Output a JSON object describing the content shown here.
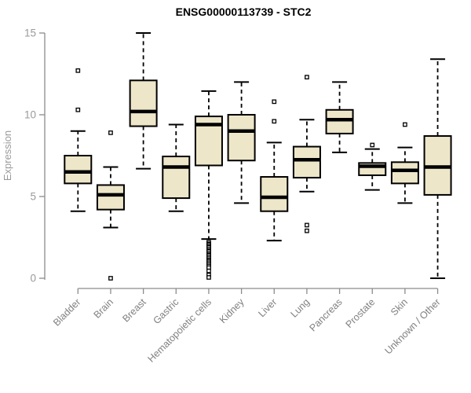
{
  "chart_data": {
    "type": "boxplot",
    "title": "ENSG00000113739 - STC2",
    "xlabel": "",
    "ylabel": "Expression",
    "ylim": [
      0,
      15
    ],
    "yticks": [
      0,
      5,
      10,
      15
    ],
    "grid": false,
    "legend": "none",
    "colors": {
      "box_fill": "#EDE6C9",
      "box_stroke": "#000000",
      "median": "#000000",
      "whisker": "#000000",
      "outlier_fill": "#FFFFFF",
      "axis": "#8C8C8C",
      "tick_label": "#9A9A9A",
      "category_label": "#808080",
      "title_color": "#000000",
      "background": "#FFFFFF"
    },
    "categories": [
      "Bladder",
      "Brain",
      "Breast",
      "Gastric",
      "Hematopoietic cells",
      "Kidney",
      "Liver",
      "Lung",
      "Pancreas",
      "Prostate",
      "Skin",
      "Unknown / Other"
    ],
    "series": [
      {
        "category": "Bladder",
        "whisker_low": 4.1,
        "q1": 5.8,
        "median": 6.5,
        "q3": 7.5,
        "whisker_high": 9.0,
        "outliers": [
          10.3,
          12.7
        ]
      },
      {
        "category": "Brain",
        "whisker_low": 3.1,
        "q1": 4.2,
        "median": 5.1,
        "q3": 5.7,
        "whisker_high": 6.8,
        "outliers": [
          0.0,
          8.9
        ]
      },
      {
        "category": "Breast",
        "whisker_low": 6.7,
        "q1": 9.3,
        "median": 10.2,
        "q3": 12.1,
        "whisker_high": 15.0,
        "outliers": []
      },
      {
        "category": "Gastric",
        "whisker_low": 4.1,
        "q1": 4.9,
        "median": 6.8,
        "q3": 7.45,
        "whisker_high": 9.4,
        "outliers": []
      },
      {
        "category": "Hematopoietic cells",
        "whisker_low": 2.4,
        "q1": 6.9,
        "median": 9.4,
        "q3": 9.9,
        "whisker_high": 11.45,
        "outliers": [
          2.2,
          2.1,
          2.05,
          1.95,
          1.9,
          1.8,
          1.7,
          1.65,
          1.55,
          1.45,
          1.4,
          1.3,
          1.2,
          1.1,
          1.05,
          0.95,
          0.85,
          0.75,
          0.65,
          0.45,
          0.2,
          0.05
        ]
      },
      {
        "category": "Kidney",
        "whisker_low": 4.6,
        "q1": 7.2,
        "median": 9.0,
        "q3": 10.0,
        "whisker_high": 12.0,
        "outliers": []
      },
      {
        "category": "Liver",
        "whisker_low": 2.3,
        "q1": 4.1,
        "median": 4.95,
        "q3": 6.2,
        "whisker_high": 8.3,
        "outliers": [
          9.6,
          10.8
        ]
      },
      {
        "category": "Lung",
        "whisker_low": 5.3,
        "q1": 6.15,
        "median": 7.25,
        "q3": 8.05,
        "whisker_high": 9.7,
        "outliers": [
          2.9,
          3.25,
          12.3
        ]
      },
      {
        "category": "Pancreas",
        "whisker_low": 7.7,
        "q1": 8.85,
        "median": 9.7,
        "q3": 10.3,
        "whisker_high": 12.0,
        "outliers": []
      },
      {
        "category": "Prostate",
        "whisker_low": 5.4,
        "q1": 6.3,
        "median": 6.85,
        "q3": 7.05,
        "whisker_high": 7.9,
        "outliers": [
          8.15
        ]
      },
      {
        "category": "Skin",
        "whisker_low": 4.6,
        "q1": 5.8,
        "median": 6.6,
        "q3": 7.1,
        "whisker_high": 8.0,
        "outliers": [
          9.4
        ]
      },
      {
        "category": "Unknown / Other",
        "whisker_low": 0.0,
        "q1": 5.1,
        "median": 6.8,
        "q3": 8.7,
        "whisker_high": 13.4,
        "outliers": []
      }
    ]
  }
}
